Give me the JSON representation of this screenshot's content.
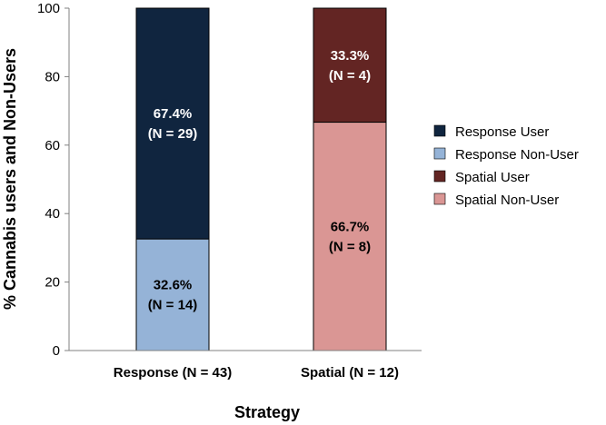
{
  "chart_data": {
    "type": "bar",
    "stacked": true,
    "xlabel": "Strategy",
    "ylabel": "% Cannabis users and Non-Users",
    "ylim": [
      0,
      100
    ],
    "yticks": [
      0,
      20,
      40,
      60,
      80,
      100
    ],
    "grid": false,
    "legend_position": "right",
    "categories": [
      "Response (N = 43)",
      "Spatial (N = 12)"
    ],
    "bars": [
      {
        "category": "Response (N = 43)",
        "segments": [
          {
            "series": "Response Non-User",
            "value": 32.6,
            "label": [
              "32.6%",
              "(N = 14)"
            ],
            "color": "#95b3d7",
            "text_color": "#000000"
          },
          {
            "series": "Response User",
            "value": 67.4,
            "label": [
              "67.4%",
              "(N = 29)"
            ],
            "color": "#10253f",
            "text_color": "#ffffff"
          }
        ]
      },
      {
        "category": "Spatial (N = 12)",
        "segments": [
          {
            "series": "Spatial Non-User",
            "value": 66.7,
            "label": [
              "66.7%",
              "(N = 8)"
            ],
            "color": "#da9694",
            "text_color": "#000000"
          },
          {
            "series": "Spatial User",
            "value": 33.3,
            "label": [
              "33.3%",
              "(N = 4)"
            ],
            "color": "#632523",
            "text_color": "#ffffff"
          }
        ]
      }
    ],
    "legend": [
      {
        "name": "Response User",
        "color": "#10253f"
      },
      {
        "name": "Response Non-User",
        "color": "#95b3d7"
      },
      {
        "name": "Spatial User",
        "color": "#632523"
      },
      {
        "name": "Spatial Non-User",
        "color": "#da9694"
      }
    ]
  }
}
